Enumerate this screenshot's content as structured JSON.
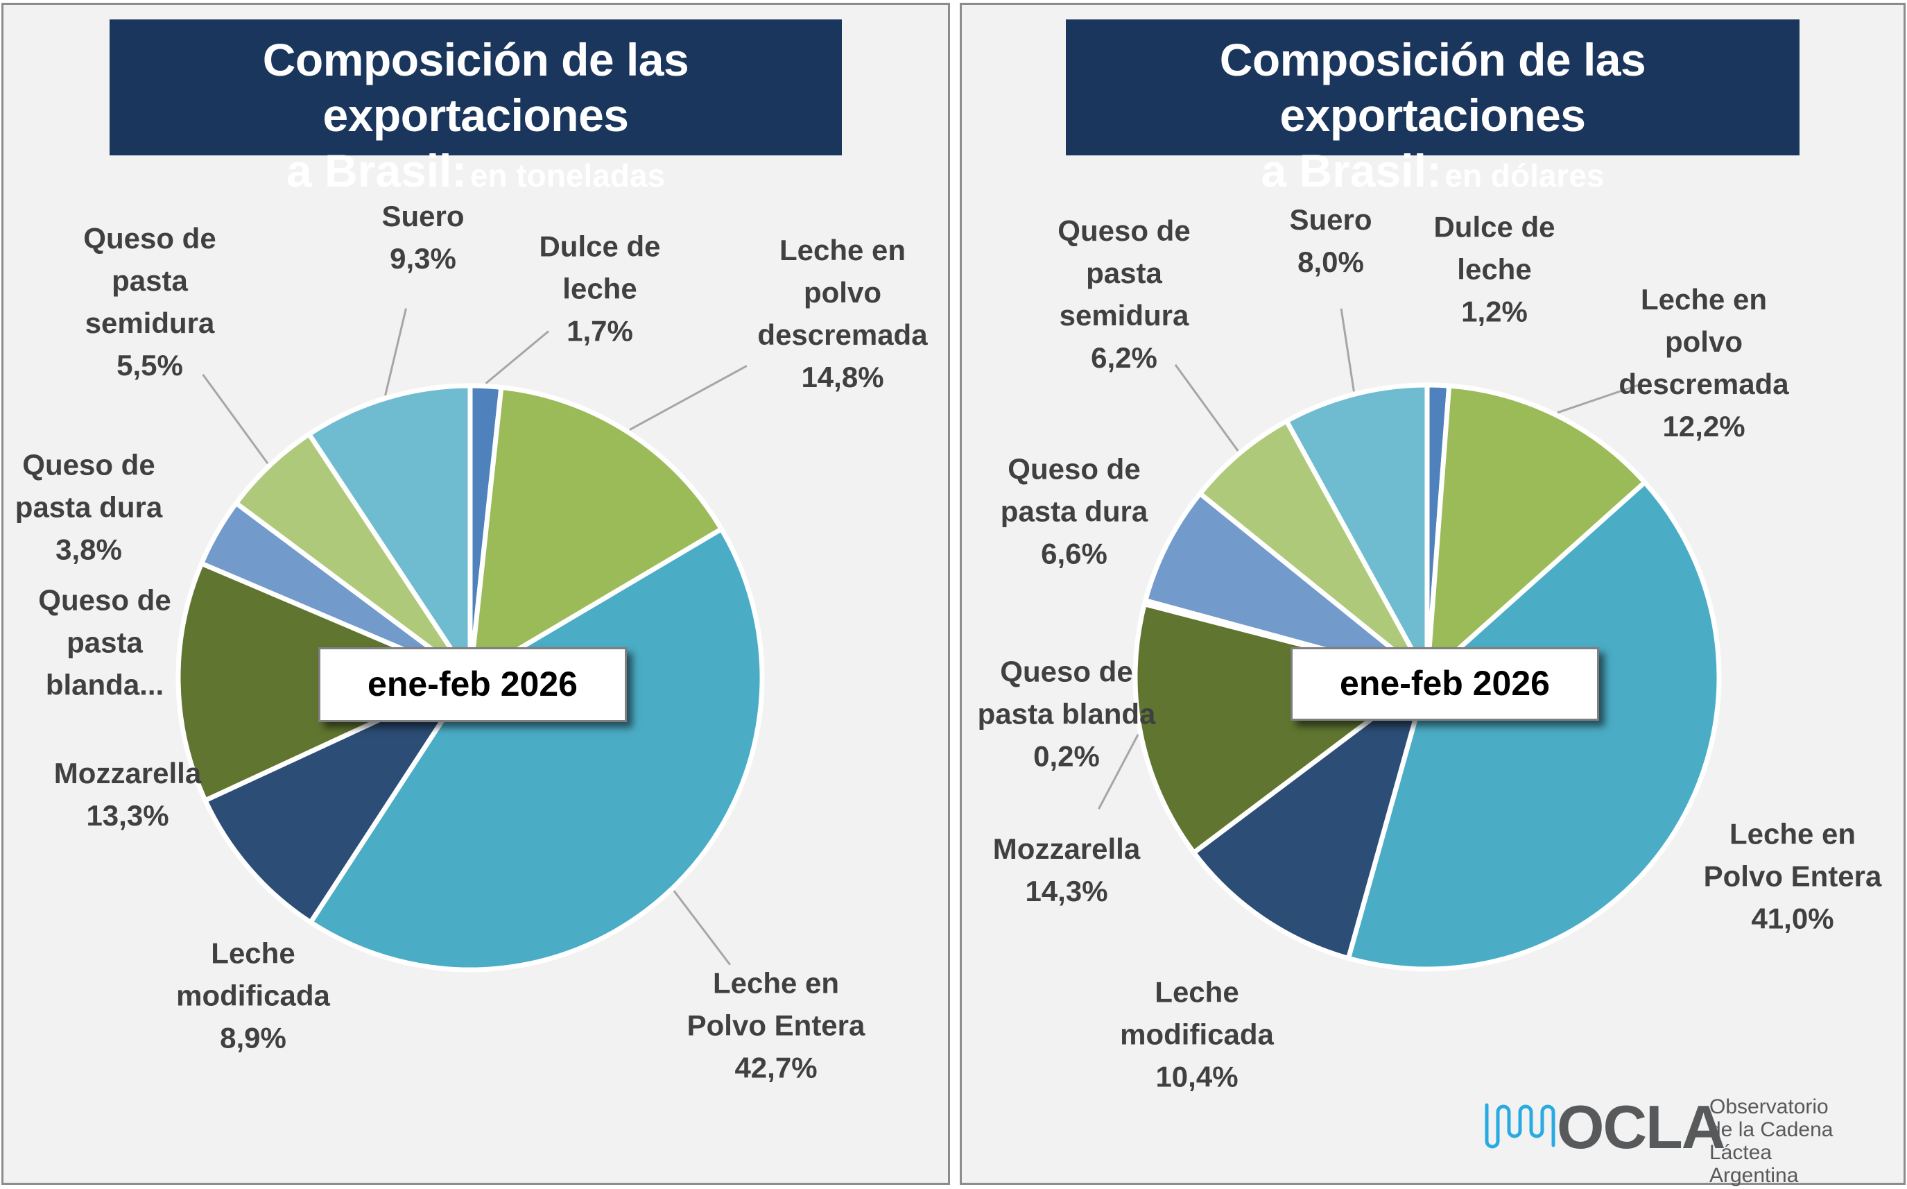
{
  "charts": [
    {
      "title_line1": "Composición de las exportaciones",
      "title_line2_bold": "a Brasil:",
      "title_line2_unit": "en toneladas",
      "period_label": "ene-feb 2026"
    },
    {
      "title_line1": "Composición de las exportaciones",
      "title_line2_bold": "a Brasil:",
      "title_line2_unit": "en dólares",
      "period_label": "ene-feb 2026"
    }
  ],
  "chart_data": [
    {
      "type": "pie",
      "title": "Composición de las exportaciones a Brasil: en toneladas",
      "annotation": "ene-feb 2026",
      "start_angle": "12 o'clock, clockwise",
      "legend": "none (data labels with leader lines)",
      "slices": [
        {
          "name": "Dulce de leche",
          "label": "Dulce de\nleche",
          "value": 1.7,
          "value_label": "1,7%",
          "color": "#4F81BD"
        },
        {
          "name": "Leche en polvo descremada",
          "label": "Leche en\npolvo\ndescremada",
          "value": 14.8,
          "value_label": "14,8%",
          "color": "#9BBB59"
        },
        {
          "name": "Leche en Polvo Entera",
          "label": "Leche en\nPolvo Entera",
          "value": 42.7,
          "value_label": "42,7%",
          "color": "#4BACC6"
        },
        {
          "name": "Leche modificada",
          "label": "Leche\nmodificada",
          "value": 8.9,
          "value_label": "8,9%",
          "color": "#2C4D75"
        },
        {
          "name": "Mozzarella",
          "label": "Mozzarella",
          "value": 13.3,
          "value_label": "13,3%",
          "color": "#5F7530"
        },
        {
          "name": "Queso de pasta blanda",
          "label": "Queso de\npasta\nblanda...",
          "value": 0.0,
          "value_label": "",
          "color": "#772C2A"
        },
        {
          "name": "Queso de pasta dura",
          "label": "Queso de\npasta dura",
          "value": 3.8,
          "value_label": "3,8%",
          "color": "#729ACA"
        },
        {
          "name": "Queso de pasta semidura",
          "label": "Queso de\npasta\nsemidura",
          "value": 5.5,
          "value_label": "5,5%",
          "color": "#AFC97A"
        },
        {
          "name": "Suero",
          "label": "Suero",
          "value": 9.3,
          "value_label": "9,3%",
          "color": "#6FBCD1"
        }
      ]
    },
    {
      "type": "pie",
      "title": "Composición de las exportaciones a Brasil: en dólares",
      "annotation": "ene-feb 2026",
      "start_angle": "12 o'clock, clockwise",
      "legend": "none (data labels with leader lines)",
      "slices": [
        {
          "name": "Dulce de leche",
          "label": "Dulce de\nleche",
          "value": 1.2,
          "value_label": "1,2%",
          "color": "#4F81BD"
        },
        {
          "name": "Leche en polvo descremada",
          "label": "Leche en\npolvo\ndescremada",
          "value": 12.2,
          "value_label": "12,2%",
          "color": "#9BBB59"
        },
        {
          "name": "Leche en Polvo Entera",
          "label": "Leche en\nPolvo Entera",
          "value": 41.0,
          "value_label": "41,0%",
          "color": "#4BACC6"
        },
        {
          "name": "Leche modificada",
          "label": "Leche\nmodificada",
          "value": 10.4,
          "value_label": "10,4%",
          "color": "#2C4D75"
        },
        {
          "name": "Mozzarella",
          "label": "Mozzarella",
          "value": 14.3,
          "value_label": "14,3%",
          "color": "#5F7530"
        },
        {
          "name": "Queso de pasta blanda",
          "label": "Queso de\npasta blanda",
          "value": 0.2,
          "value_label": "0,2%",
          "color": "#772C2A"
        },
        {
          "name": "Queso de pasta dura",
          "label": "Queso de\npasta dura",
          "value": 6.6,
          "value_label": "6,6%",
          "color": "#729ACA"
        },
        {
          "name": "Queso de pasta semidura",
          "label": "Queso de\npasta\nsemidura",
          "value": 6.2,
          "value_label": "6,2%",
          "color": "#AFC97A"
        },
        {
          "name": "Suero",
          "label": "Suero",
          "value": 8.0,
          "value_label": "8,0%",
          "color": "#6FBCD1"
        }
      ]
    }
  ],
  "logo": {
    "name": "OCLA",
    "line1": "Observatorio",
    "line2": "de la Cadena Láctea",
    "line3": "Argentina",
    "wave_color": "#29abe2",
    "text_color": "#58595b"
  }
}
